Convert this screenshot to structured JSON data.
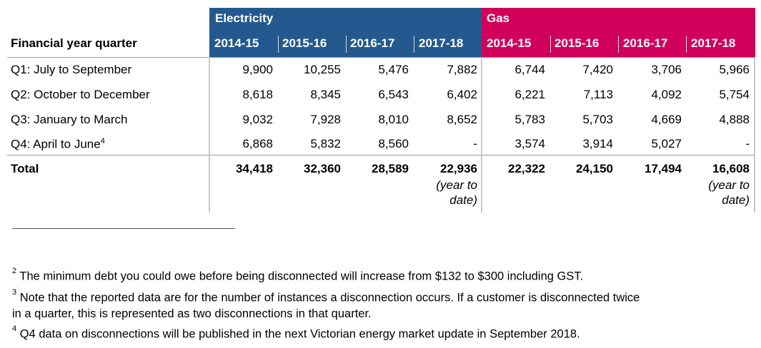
{
  "table": {
    "row_header_label": "Financial year quarter",
    "groups": [
      {
        "name": "Electricity",
        "color": "#23598e"
      },
      {
        "name": "Gas",
        "color": "#d1005b"
      }
    ],
    "years": [
      "2014-15",
      "2015-16",
      "2016-17",
      "2017-18",
      "2014-15",
      "2015-16",
      "2016-17",
      "2017-18"
    ],
    "rows": [
      {
        "label": "Q1: July to September",
        "sup": "",
        "values": [
          "9,900",
          "10,255",
          "5,476",
          "7,882",
          "6,744",
          "7,420",
          "3,706",
          "5,966"
        ]
      },
      {
        "label": "Q2: October to December",
        "sup": "",
        "values": [
          "8,618",
          "8,345",
          "6,543",
          "6,402",
          "6,221",
          "7,113",
          "4,092",
          "5,754"
        ]
      },
      {
        "label": "Q3: January to March",
        "sup": "",
        "values": [
          "9,032",
          "7,928",
          "8,010",
          "8,652",
          "5,783",
          "5,703",
          "4,669",
          "4,888"
        ]
      },
      {
        "label": "Q4: April to June",
        "sup": "4",
        "values": [
          "6,868",
          "5,832",
          "8,560",
          "-",
          "3,574",
          "3,914",
          "5,027",
          "-"
        ]
      }
    ],
    "total": {
      "label": "Total",
      "values": [
        "34,418",
        "32,360",
        "28,589",
        "22,936",
        "22,322",
        "24,150",
        "17,494",
        "16,608"
      ],
      "ytd_note_line1": "(year to",
      "ytd_note_line2": "date)"
    }
  },
  "footnotes": [
    {
      "num": "2",
      "lines": [
        "The minimum debt you could owe before being disconnected will increase from $132 to $300 including GST."
      ]
    },
    {
      "num": "3",
      "lines": [
        "Note that the reported data are for the number of instances a disconnection occurs. If a customer is disconnected twice",
        "in a quarter, this is represented as two disconnections in that quarter."
      ]
    },
    {
      "num": "4",
      "lines": [
        "Q4 data on disconnections will be published in the next Victorian energy market update in September 2018."
      ]
    }
  ]
}
